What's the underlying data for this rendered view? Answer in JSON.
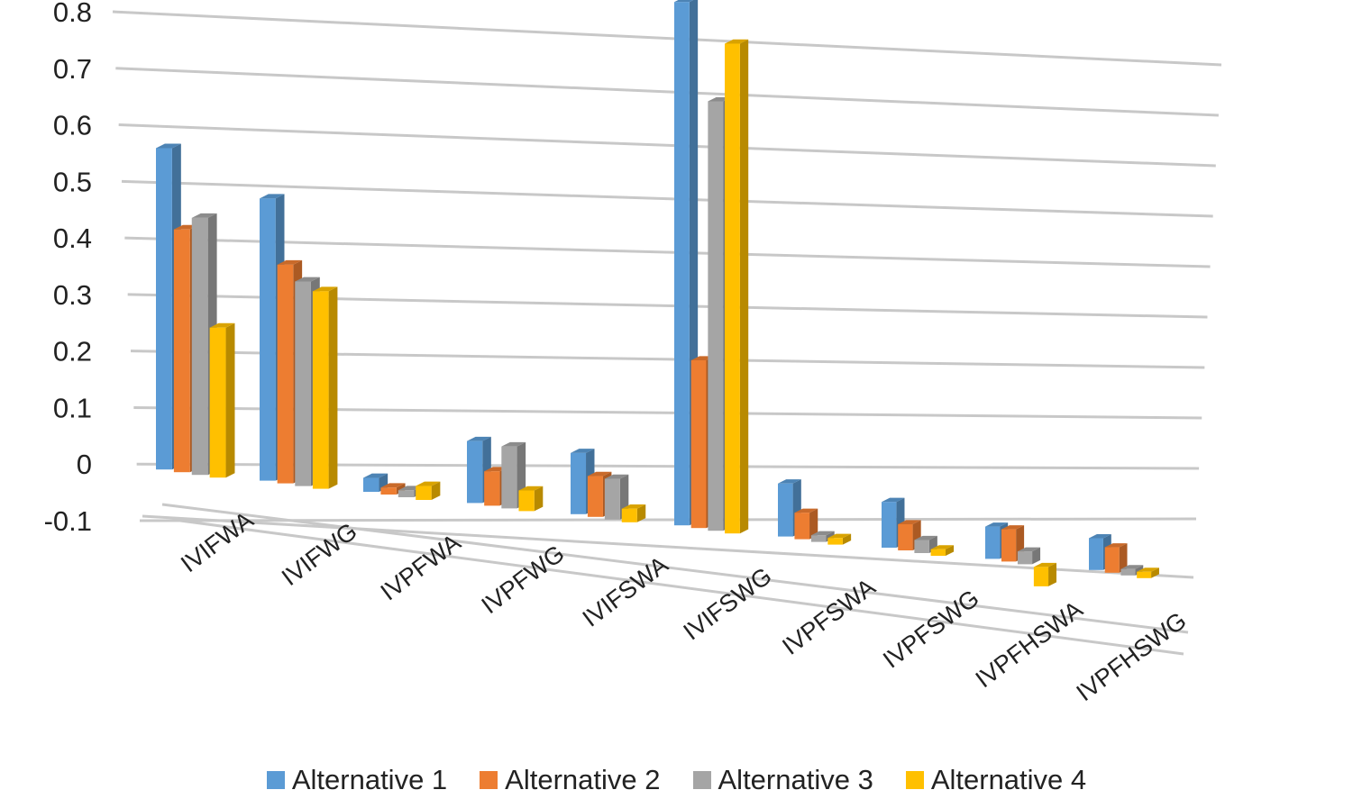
{
  "chart_data": {
    "type": "bar",
    "title": "",
    "xlabel": "",
    "ylabel": "",
    "ylim": [
      -0.1,
      0.8
    ],
    "yticks": [
      "0.8",
      "0.7",
      "0.6",
      "0.5",
      "0.4",
      "0.3",
      "0.2",
      "0.1",
      "0",
      "-0.1"
    ],
    "categories": [
      "IVIFWA",
      "IVIFWG",
      "IVPFWA",
      "IVPFWG",
      "IVIFSWA",
      "IVIFSWG",
      "IVPFSWA",
      "IVPFSWG",
      "IVPFHSWA",
      "IVPFHSWG"
    ],
    "series": [
      {
        "name": "Alternative 1",
        "color": "#5b9bd5",
        "values": [
          0.45,
          0.4,
          0.02,
          0.09,
          0.09,
          0.78,
          0.08,
          0.07,
          0.05,
          0.05
        ]
      },
      {
        "name": "Alternative 2",
        "color": "#ed7d31",
        "values": [
          0.34,
          0.31,
          0.01,
          0.05,
          0.06,
          0.25,
          0.04,
          0.04,
          0.05,
          0.04
        ]
      },
      {
        "name": "Alternative 3",
        "color": "#a5a5a5",
        "values": [
          0.36,
          0.29,
          0.01,
          0.09,
          0.06,
          0.64,
          0.01,
          0.02,
          0.02,
          0.01
        ]
      },
      {
        "name": "Alternative 4",
        "color": "#ffc000",
        "values": [
          0.21,
          0.28,
          0.02,
          0.03,
          0.02,
          0.73,
          0.01,
          0.01,
          -0.03,
          0.01
        ]
      }
    ],
    "grid": true,
    "legend_position": "bottom"
  },
  "legend": {
    "items": [
      "Alternative 1",
      "Alternative 2",
      "Alternative 3",
      "Alternative 4"
    ]
  }
}
